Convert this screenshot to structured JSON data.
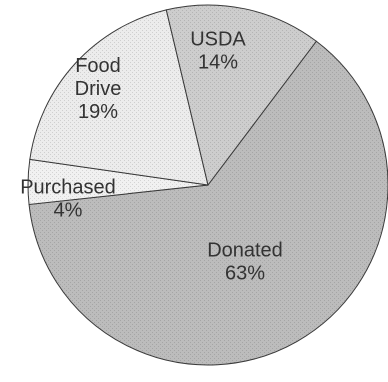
{
  "chart_data": {
    "type": "pie",
    "slices": [
      {
        "category": "Donated",
        "label": "Donated",
        "value": 63,
        "value_label": "63%",
        "color": "#bcbcbc"
      },
      {
        "category": "Purchased",
        "label": "Purchased",
        "value": 4,
        "value_label": "4%",
        "color": "#f1f1f1"
      },
      {
        "category": "Food Drive",
        "label": "Food\nDrive",
        "value": 19,
        "value_label": "19%",
        "color": "#ececec"
      },
      {
        "category": "USDA",
        "label": "USDA",
        "value": 14,
        "value_label": "14%",
        "color": "#cdcdcd"
      }
    ]
  }
}
